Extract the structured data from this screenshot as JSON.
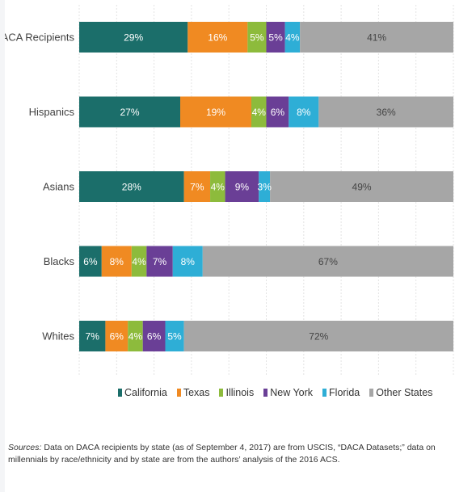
{
  "chart_data": {
    "type": "bar",
    "orientation": "horizontal",
    "stacked": true,
    "normalized": true,
    "categories": [
      "DACA Recipients",
      "Hispanics",
      "Asians",
      "Blacks",
      "Whites"
    ],
    "series": [
      {
        "name": "California",
        "color": "#1b6e6a",
        "values": [
          29,
          27,
          28,
          6,
          7
        ],
        "labels": [
          "29%",
          "27%",
          "28%",
          "6%",
          "7%"
        ]
      },
      {
        "name": "Texas",
        "color": "#f08a22",
        "values": [
          16,
          19,
          7,
          8,
          6
        ],
        "labels": [
          "16%",
          "19%",
          "7%",
          "8%",
          "6%"
        ]
      },
      {
        "name": "Illinois",
        "color": "#8dbb3c",
        "values": [
          5,
          4,
          4,
          4,
          4
        ],
        "labels": [
          "5%",
          "4%",
          "4%",
          "4%",
          "4%"
        ]
      },
      {
        "name": "New York",
        "color": "#6a3f96",
        "values": [
          5,
          6,
          9,
          7,
          6
        ],
        "labels": [
          "5%",
          "6%",
          "9%",
          "7%",
          "6%"
        ]
      },
      {
        "name": "Florida",
        "color": "#2eaed6",
        "values": [
          4,
          8,
          3,
          8,
          5
        ],
        "labels": [
          "4%",
          "8%",
          "3%",
          "8%",
          "5%"
        ]
      },
      {
        "name": "Other States",
        "color": "#a6a6a6",
        "values": [
          41,
          36,
          49,
          67,
          72
        ],
        "labels": [
          "41%",
          "36%",
          "49%",
          "67%",
          "72%"
        ]
      }
    ],
    "grid": true,
    "legend_position": "bottom"
  },
  "legend_items": [
    "California",
    "Texas",
    "Illinois",
    "New York",
    "Florida",
    "Other States"
  ],
  "source": {
    "prefix": "Sources:",
    "text": "Data on DACA recipients by state (as of September 4, 2017) are from USCIS, “DACA Datasets;” data on millennials by race/ethnicity and by state are from the authors’ analysis of the 2016 ACS."
  }
}
